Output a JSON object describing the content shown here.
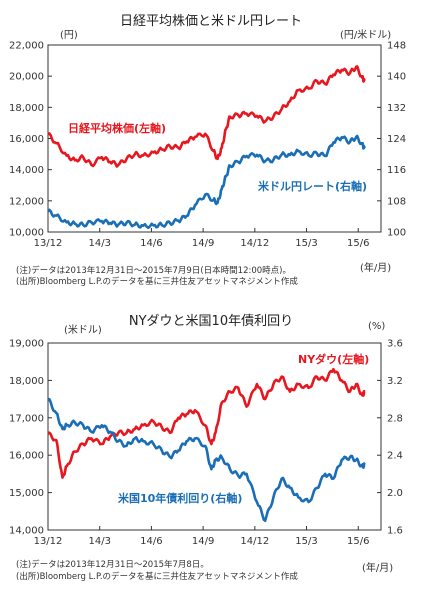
{
  "chart_data": [
    {
      "type": "line",
      "title": "日経平均株価と米ドル円レート",
      "ylabel_left": "(円)",
      "ylabel_right": "(円/米ドル)",
      "xlabel": "(年/月)",
      "x_ticks": [
        "13/12",
        "14/3",
        "14/6",
        "14/9",
        "14/12",
        "15/3",
        "15/6"
      ],
      "ylim_left": [
        10000,
        22000
      ],
      "yticks_left": [
        "10,000",
        "12,000",
        "14,000",
        "16,000",
        "18,000",
        "20,000",
        "22,000"
      ],
      "ylim_right": [
        100,
        148
      ],
      "yticks_right": [
        "100",
        "108",
        "116",
        "124",
        "132",
        "140",
        "148"
      ],
      "grid": false,
      "notes": [
        "(注)データは2013年12月31日～2015年7月9日(日本時間12:00時点)。",
        "(出所)Bloomberg L.P.のデータを基に三井住友アセットマネジメント作成"
      ],
      "series": [
        {
          "name": "日経平均株価(左軸)",
          "axis": "left",
          "color": "#e8161e",
          "x": [
            2013.99,
            2014.03,
            2014.08,
            2014.12,
            2014.16,
            2014.2,
            2014.25,
            2014.29,
            2014.33,
            2014.37,
            2014.41,
            2014.45,
            2014.5,
            2014.54,
            2014.58,
            2014.62,
            2014.66,
            2014.7,
            2014.75,
            2014.79,
            2014.81,
            2014.83,
            2014.85,
            2014.87,
            2014.91,
            2014.95,
            2015.0,
            2015.04,
            2015.08,
            2015.12,
            2015.16,
            2015.2,
            2015.25,
            2015.29,
            2015.33,
            2015.37,
            2015.41,
            2015.45,
            2015.48,
            2015.51,
            2015.52
          ],
          "y": [
            16291,
            15700,
            14900,
            14600,
            14800,
            14300,
            14800,
            14500,
            14300,
            14700,
            15000,
            14900,
            15100,
            15300,
            15500,
            15400,
            15800,
            16100,
            16300,
            15200,
            14700,
            15400,
            16600,
            17400,
            17500,
            17600,
            17450,
            17100,
            17400,
            17900,
            18400,
            19100,
            19200,
            19700,
            19500,
            20100,
            20400,
            20200,
            20600,
            19900,
            19700
          ]
        },
        {
          "name": "米ドル円レート(右軸)",
          "axis": "right",
          "color": "#1a6eb5",
          "x": [
            2013.99,
            2014.03,
            2014.08,
            2014.12,
            2014.16,
            2014.2,
            2014.25,
            2014.29,
            2014.33,
            2014.37,
            2014.41,
            2014.45,
            2014.5,
            2014.54,
            2014.58,
            2014.62,
            2014.66,
            2014.7,
            2014.75,
            2014.79,
            2014.81,
            2014.83,
            2014.85,
            2014.87,
            2014.91,
            2014.95,
            2015.0,
            2015.04,
            2015.08,
            2015.12,
            2015.16,
            2015.2,
            2015.25,
            2015.29,
            2015.33,
            2015.37,
            2015.41,
            2015.45,
            2015.48,
            2015.51,
            2015.52
          ],
          "y": [
            105.3,
            104.2,
            102.5,
            102.1,
            101.8,
            102.5,
            102.8,
            102.3,
            101.9,
            102.4,
            101.9,
            101.6,
            101.7,
            101.8,
            102.3,
            102.9,
            104.1,
            106.8,
            109.6,
            108.2,
            107.5,
            111.0,
            114.3,
            117.0,
            118.0,
            119.5,
            119.8,
            118.2,
            118.5,
            119.9,
            119.8,
            120.8,
            119.7,
            120.2,
            119.5,
            123.0,
            124.3,
            123.1,
            124.4,
            122.5,
            121.5
          ]
        }
      ]
    },
    {
      "type": "line",
      "title": "NYダウと米国10年債利回り",
      "ylabel_left": "(米ドル)",
      "ylabel_right": "(%)",
      "xlabel": "(年/月)",
      "x_ticks": [
        "13/12",
        "14/3",
        "14/6",
        "14/9",
        "14/12",
        "15/3",
        "15/6"
      ],
      "ylim_left": [
        14000,
        19000
      ],
      "yticks_left": [
        "14,000",
        "15,000",
        "16,000",
        "17,000",
        "18,000",
        "19,000"
      ],
      "ylim_right": [
        1.6,
        3.6
      ],
      "yticks_right": [
        "1.6",
        "2.0",
        "2.4",
        "2.8",
        "3.2",
        "3.6"
      ],
      "grid": false,
      "notes": [
        "(注)データは2013年12月31日～2015年7月8日。",
        "(出所)Bloomberg L.P.のデータを基に三井住友アセットマネジメント作成"
      ],
      "series": [
        {
          "name": "NYダウ(左軸)",
          "axis": "left",
          "color": "#e8161e",
          "x": [
            2013.99,
            2014.03,
            2014.06,
            2014.08,
            2014.12,
            2014.16,
            2014.2,
            2014.25,
            2014.29,
            2014.33,
            2014.37,
            2014.41,
            2014.45,
            2014.5,
            2014.54,
            2014.58,
            2014.62,
            2014.66,
            2014.7,
            2014.75,
            2014.78,
            2014.8,
            2014.83,
            2014.87,
            2014.91,
            2014.95,
            2015.0,
            2015.04,
            2015.08,
            2015.12,
            2015.16,
            2015.2,
            2015.25,
            2015.29,
            2015.33,
            2015.37,
            2015.41,
            2015.45,
            2015.48,
            2015.51,
            2015.52
          ],
          "y": [
            16577,
            16400,
            15400,
            15700,
            16100,
            16300,
            16450,
            16300,
            16500,
            16600,
            16600,
            16700,
            16800,
            16900,
            16750,
            16600,
            17000,
            17100,
            17200,
            16800,
            16300,
            16600,
            17400,
            17700,
            17800,
            17300,
            17900,
            17500,
            17900,
            18100,
            17700,
            17900,
            17800,
            18100,
            18000,
            18300,
            18000,
            17700,
            17900,
            17600,
            17700
          ]
        },
        {
          "name": "米国10年債利回り(右軸)",
          "axis": "right",
          "color": "#1a6eb5",
          "x": [
            2013.99,
            2014.03,
            2014.06,
            2014.08,
            2014.12,
            2014.16,
            2014.2,
            2014.25,
            2014.29,
            2014.33,
            2014.37,
            2014.41,
            2014.45,
            2014.5,
            2014.54,
            2014.58,
            2014.62,
            2014.66,
            2014.7,
            2014.75,
            2014.78,
            2014.8,
            2014.83,
            2014.87,
            2014.91,
            2014.95,
            2015.0,
            2015.04,
            2015.08,
            2015.12,
            2015.16,
            2015.2,
            2015.25,
            2015.29,
            2015.33,
            2015.37,
            2015.41,
            2015.45,
            2015.48,
            2015.51,
            2015.52
          ],
          "y": [
            3.0,
            2.85,
            2.68,
            2.72,
            2.75,
            2.72,
            2.65,
            2.72,
            2.65,
            2.55,
            2.5,
            2.58,
            2.55,
            2.52,
            2.45,
            2.38,
            2.45,
            2.55,
            2.58,
            2.5,
            2.25,
            2.35,
            2.38,
            2.25,
            2.18,
            2.2,
            1.9,
            1.7,
            1.95,
            2.15,
            2.05,
            1.95,
            1.9,
            2.05,
            2.2,
            2.15,
            2.35,
            2.38,
            2.35,
            2.28,
            2.3
          ]
        }
      ]
    }
  ]
}
